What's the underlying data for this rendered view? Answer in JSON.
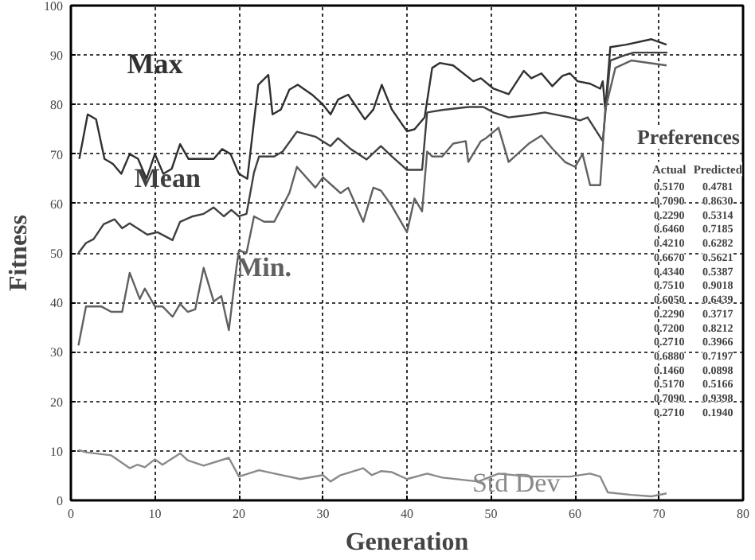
{
  "chart_data": {
    "type": "line",
    "xlabel": "Generation",
    "ylabel": "Fitness",
    "xlim": [
      0,
      80
    ],
    "ylim": [
      0,
      100
    ],
    "xticks": [
      0,
      10,
      20,
      30,
      40,
      50,
      60,
      70,
      80
    ],
    "yticks": [
      0,
      10,
      20,
      30,
      40,
      50,
      60,
      70,
      80,
      90,
      100
    ],
    "grid": true,
    "marker": "none",
    "line_style": "solid",
    "series": [
      {
        "name": "Max",
        "color": "#303030",
        "x": [
          1,
          2,
          3,
          4,
          5,
          6,
          7,
          8,
          9,
          10,
          11,
          12,
          13,
          14,
          16,
          17,
          18,
          19,
          20,
          21,
          22.3,
          23.5,
          24,
          25,
          26,
          27,
          28.7,
          30,
          30.9,
          31.8,
          33,
          35,
          36,
          37,
          38.2,
          40,
          40.9,
          42.1,
          43,
          43.9,
          45.5,
          47.9,
          48.8,
          50.3,
          52.1,
          53.9,
          54.8,
          56,
          57.3,
          58.5,
          59.4,
          60.3,
          61.8,
          63,
          63.3,
          63.6,
          64.2,
          66.1,
          69.1,
          70.9
        ],
        "values": [
          69,
          78,
          77,
          69,
          68,
          66,
          70,
          69,
          65,
          70,
          66,
          67,
          72,
          69,
          69,
          69,
          71,
          70,
          66,
          65,
          84,
          86,
          78,
          79,
          83,
          84,
          82,
          80,
          78,
          81,
          82,
          77,
          79,
          84,
          79,
          74.6,
          75,
          77.4,
          87.4,
          88.4,
          87.9,
          84.7,
          85.3,
          83.2,
          82.1,
          86.8,
          85.3,
          86.3,
          83.7,
          85.8,
          86.3,
          84.7,
          84.2,
          83.2,
          84.7,
          79,
          91.6,
          92.1,
          93.2,
          92.1
        ]
      },
      {
        "name": "Mean",
        "color": "#404040",
        "x": [
          0.9,
          1.8,
          2.7,
          3.9,
          5.2,
          6.1,
          7,
          9.1,
          10.3,
          12.1,
          13,
          14.5,
          15.8,
          17,
          18.2,
          19.1,
          20,
          20.9,
          21.8,
          22.4,
          24.2,
          25.2,
          26.9,
          29.1,
          30.9,
          31.8,
          33.3,
          35.2,
          36.9,
          38.2,
          40,
          41.8,
          42.4,
          44.2,
          47.3,
          49.1,
          50.3,
          52.1,
          54.5,
          56.4,
          59.4,
          60.6,
          61.5,
          63.3,
          64.2,
          66,
          67,
          71
        ],
        "values": [
          50,
          52,
          52.8,
          55.8,
          56.8,
          55,
          56,
          53.7,
          54.2,
          52.6,
          56.3,
          57.4,
          57.9,
          59.2,
          57.4,
          58.7,
          57.4,
          57.9,
          66.3,
          69.5,
          69.5,
          70.5,
          74.5,
          73.5,
          71.6,
          73.2,
          71,
          68.9,
          71.6,
          69.5,
          66.8,
          66.8,
          78.4,
          78.9,
          79.5,
          79.5,
          78.4,
          77.4,
          77.9,
          78.4,
          77.4,
          76.8,
          77.4,
          72.6,
          88.9,
          90,
          90.5,
          90.5
        ]
      },
      {
        "name": "Min.",
        "color": "#606060",
        "x": [
          0.9,
          1.8,
          3.6,
          4.8,
          6.1,
          7,
          8.2,
          8.8,
          10,
          10.9,
          12.1,
          13,
          13.9,
          14.8,
          15.8,
          17,
          17.9,
          18.8,
          19.7,
          20,
          20.9,
          21.8,
          23,
          24.2,
          26,
          26.9,
          29.1,
          30,
          32.1,
          33,
          34.8,
          36,
          36.9,
          38.2,
          40,
          40.9,
          41.8,
          42.4,
          43,
          44.2,
          45.5,
          47,
          47.3,
          48.8,
          49.4,
          50.9,
          52.1,
          54.5,
          56,
          57.3,
          58.8,
          60,
          60.9,
          61.8,
          63,
          63.6,
          64.8,
          66.7,
          70.9
        ],
        "values": [
          31.3,
          39.2,
          39.2,
          38.1,
          38.1,
          46,
          40.7,
          42.8,
          39.2,
          39.2,
          37.1,
          39.7,
          38.1,
          38.6,
          47,
          40.2,
          41.3,
          34.4,
          47,
          50.5,
          50,
          57.4,
          56.3,
          56.3,
          62.1,
          67.4,
          63.2,
          65.3,
          62.1,
          63.2,
          56.3,
          63.2,
          62.6,
          59.5,
          54.2,
          61,
          58.4,
          70.5,
          69.5,
          69.5,
          72.1,
          72.6,
          68.4,
          72.6,
          73.2,
          75.3,
          68.4,
          72.1,
          73.7,
          71.1,
          68.4,
          67.4,
          70,
          63.7,
          63.7,
          79,
          87.4,
          88.9,
          87.9
        ]
      },
      {
        "name": "Std Dev",
        "color": "#8a8a8a",
        "x": [
          0.9,
          1.8,
          4.8,
          7,
          7.9,
          8.8,
          10,
          10.9,
          13,
          13.9,
          15.8,
          18.8,
          20,
          22.4,
          24.8,
          27.3,
          30,
          30.9,
          32.1,
          34.8,
          35.8,
          36.9,
          38.2,
          40,
          42.4,
          44.2,
          48.5,
          50.9,
          54.5,
          59.4,
          61.8,
          63,
          63.9,
          66.7,
          69.1,
          70.9
        ],
        "values": [
          10.2,
          9.7,
          9.1,
          6.5,
          7.2,
          6.7,
          8.3,
          7.2,
          9.5,
          8.1,
          7,
          8.6,
          4.8,
          6.1,
          5.2,
          4.3,
          5.1,
          3.8,
          5.1,
          6.5,
          5.1,
          5.9,
          5.7,
          4.3,
          5.4,
          4.6,
          3.8,
          5.4,
          4.8,
          4.8,
          5.4,
          4.8,
          1.6,
          1.1,
          0.8,
          1.4
        ]
      }
    ],
    "annotations": [
      "Preferences",
      "Actual",
      "Predicted",
      "0.5170",
      "0.4781",
      "0.7090",
      "0.8630",
      "0.2290",
      "0.5314",
      "0.6460",
      "0.7185",
      "0.4210",
      "0.6282",
      "0.6670",
      "0.5621",
      "0.4340",
      "0.5387",
      "0.7510",
      "0.9018",
      "0.6050",
      "0.6439",
      "0.2290",
      "0.3717",
      "0.7200",
      "0.8212",
      "0.2710",
      "0.3966",
      "0.6880",
      "0.7197",
      "0.1460",
      "0.0898",
      "0.5170",
      "0.5166",
      "0.7090",
      "0.9398",
      "0.2710",
      "0.1940"
    ]
  }
}
